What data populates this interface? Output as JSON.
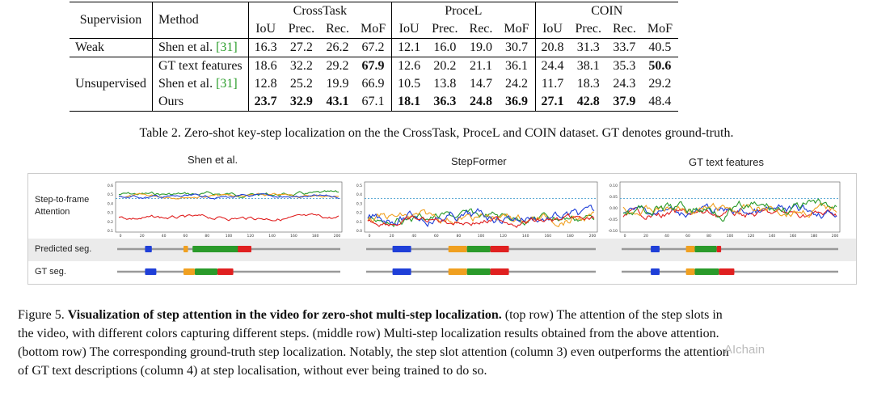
{
  "table": {
    "header": {
      "supervision": "Supervision",
      "method": "Method",
      "groups": [
        "CrossTask",
        "ProceL",
        "COIN"
      ],
      "metrics": [
        "IoU",
        "Prec.",
        "Rec.",
        "MoF"
      ]
    },
    "rows": [
      {
        "supervision": "Weak",
        "method": "Shen et al.",
        "cite": "[31]",
        "values": [
          "16.3",
          "27.2",
          "26.2",
          "67.2",
          "12.1",
          "16.0",
          "19.0",
          "30.7",
          "20.8",
          "31.3",
          "33.7",
          "40.5"
        ]
      },
      {
        "supervision": "",
        "method": "GT text features",
        "cite": "",
        "values": [
          "18.6",
          "32.2",
          "29.2",
          "67.9",
          "12.6",
          "20.2",
          "21.1",
          "36.1",
          "24.4",
          "38.1",
          "35.3",
          "50.6"
        ]
      },
      {
        "supervision": "Unsupervised",
        "method": "Shen et al.",
        "cite": "[31]",
        "values": [
          "12.8",
          "25.2",
          "19.9",
          "66.9",
          "10.5",
          "13.8",
          "14.7",
          "24.2",
          "11.7",
          "18.3",
          "24.3",
          "29.2"
        ]
      },
      {
        "supervision": "",
        "method": "Ours",
        "cite": "",
        "values": [
          "23.7",
          "32.9",
          "43.1",
          "67.1",
          "18.1",
          "36.3",
          "24.8",
          "36.9",
          "27.1",
          "42.8",
          "37.9",
          "48.4"
        ]
      }
    ]
  },
  "caption2": "Table 2. Zero-shot key-step localization on the the CrossTask, ProceL and COIN dataset. GT denotes ground-truth.",
  "figure": {
    "columns": [
      "Shen et al.",
      "StepFormer",
      "GT text features"
    ],
    "row_labels": {
      "attention_1": "Step-to-frame",
      "attention_2": "Attention",
      "predicted": "Predicted seg.",
      "gt": "GT seg."
    },
    "colors": {
      "blue": "#1f3fd8",
      "orange": "#f0a020",
      "green": "#2a9a2a",
      "red": "#e02020",
      "dashed": "#4aa0d0"
    },
    "x_ticks": [
      "0",
      "20",
      "40",
      "60",
      "80",
      "100",
      "120",
      "140",
      "160",
      "180",
      "200"
    ],
    "y_ticks_1": [
      "0.6",
      "0.5",
      "0.4",
      "0.3",
      "0.2",
      "0.1"
    ],
    "y_ticks_2": [
      "0.5",
      "0.4",
      "0.3",
      "0.2",
      "0.1",
      "0.0"
    ],
    "y_ticks_3": [
      "0.10",
      "0.05",
      "0.00",
      "-0.05",
      "-0.10"
    ]
  },
  "caption5": {
    "prefix": "Figure 5. ",
    "bold": "Visualization of step attention in the video for zero-shot multi-step localization.",
    "l1": "(top row) The attention of the step slots in",
    "l2": "the video, with different colors capturing different steps.  (middle row) Multi-step localization results obtained from the above attention.",
    "l3": "(bottom row) The corresponding ground-truth step localization. Notably, the step slot attention (column 3) even outperforms the attention",
    "l4": "of GT text descriptions (column 4) at step localisation, without ever being trained to do so."
  },
  "watermark": "AIchain"
}
